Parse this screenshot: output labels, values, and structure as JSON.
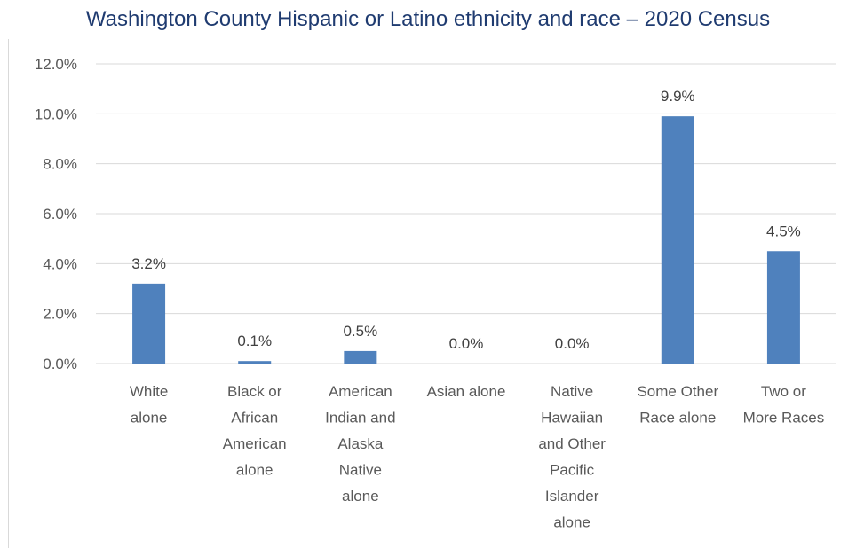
{
  "chart_data": {
    "type": "bar",
    "title": "Washington County Hispanic or Latino ethnicity and race – 2020 Census",
    "xlabel": "",
    "ylabel": "",
    "ylim": [
      0,
      12
    ],
    "yticks": [
      "0.0%",
      "2.0%",
      "4.0%",
      "6.0%",
      "8.0%",
      "10.0%",
      "12.0%"
    ],
    "grid": true,
    "legend": "none",
    "bar_color": "#4f81bd",
    "categories": [
      [
        "White",
        "alone"
      ],
      [
        "Black or",
        "African",
        "American",
        "alone"
      ],
      [
        "American",
        "Indian and",
        "Alaska",
        "Native",
        "alone"
      ],
      [
        "Asian alone"
      ],
      [
        "Native",
        "Hawaiian",
        "and Other",
        "Pacific",
        "Islander",
        "alone"
      ],
      [
        "Some Other",
        "Race alone"
      ],
      [
        "Two or",
        "More Races"
      ]
    ],
    "values": [
      3.2,
      0.1,
      0.5,
      0.0,
      0.0,
      9.9,
      4.5
    ],
    "data_labels": [
      "3.2%",
      "0.1%",
      "0.5%",
      "0.0%",
      "0.0%",
      "9.9%",
      "4.5%"
    ]
  }
}
